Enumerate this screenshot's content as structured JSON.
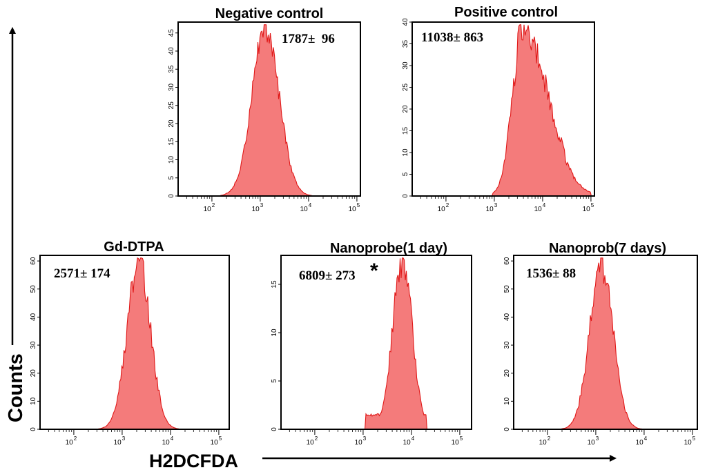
{
  "colors": {
    "fill": "#f47b7b",
    "outline": "#e01818",
    "axis": "#000000"
  },
  "axis_labels": {
    "y": "Counts",
    "x": "H2DCFDA"
  },
  "chart_data": [
    {
      "type": "histogram",
      "title": "Negative control",
      "annotation": "1787±  96",
      "x_scale": "log",
      "xlim": [
        20,
        200000
      ],
      "x_tick_labels": [
        {
          "exp": "2",
          "label": "10^2"
        },
        {
          "exp": "3",
          "label": "10^3"
        },
        {
          "exp": "4",
          "label": "10^4"
        },
        {
          "exp": "5",
          "label": "10^5"
        }
      ],
      "ylim": [
        0,
        48
      ],
      "y_ticks": [
        0,
        5,
        10,
        15,
        20,
        25,
        30,
        35,
        40,
        45
      ],
      "distribution": {
        "peak_value": 1300,
        "spread_decades": 0.28,
        "peak_count": 46,
        "lower_cut": 150,
        "upper_cut": 12000
      }
    },
    {
      "type": "histogram",
      "title": "Positive control",
      "annotation": "11038± 863",
      "x_scale": "log",
      "xlim": [
        20,
        200000
      ],
      "x_tick_labels": [
        {
          "exp": "2",
          "label": "10^2"
        },
        {
          "exp": "3",
          "label": "10^3"
        },
        {
          "exp": "4",
          "label": "10^4"
        },
        {
          "exp": "5",
          "label": "10^5"
        }
      ],
      "ylim": [
        0,
        40
      ],
      "y_ticks": [
        0,
        5,
        10,
        15,
        20,
        25,
        30,
        35,
        40
      ],
      "distribution": {
        "peak_value": 4000,
        "spread_decades": 0.22,
        "peak_count": 39,
        "right_spread_decades": 0.5,
        "secondary_peak_value": 25000,
        "secondary_peak_count": 13,
        "lower_cut": 900,
        "upper_cut": 100000
      }
    },
    {
      "type": "histogram",
      "title": "Gd-DTPA",
      "annotation": "2571± 174",
      "x_scale": "log",
      "xlim": [
        20,
        200000
      ],
      "x_tick_labels": [
        {
          "exp": "2",
          "label": "10^2"
        },
        {
          "exp": "3",
          "label": "10^3"
        },
        {
          "exp": "4",
          "label": "10^4"
        },
        {
          "exp": "5",
          "label": "10^5"
        }
      ],
      "ylim": [
        0,
        62
      ],
      "y_ticks": [
        0,
        10,
        20,
        30,
        40,
        50,
        60
      ],
      "distribution": {
        "peak_value": 2200,
        "spread_decades": 0.24,
        "peak_count": 60,
        "lower_cut": 200,
        "upper_cut": 20000
      }
    },
    {
      "type": "histogram",
      "title": "Nanoprobe(1 day)",
      "annotation": "6809± 273",
      "annotation_mark": "*",
      "x_scale": "log",
      "xlim": [
        20,
        200000
      ],
      "x_tick_labels": [
        {
          "exp": "2",
          "label": "10^2"
        },
        {
          "exp": "3",
          "label": "10^3"
        },
        {
          "exp": "4",
          "label": "10^4"
        },
        {
          "exp": "5",
          "label": "10^5"
        }
      ],
      "ylim": [
        0,
        18
      ],
      "y_ticks": [
        0,
        5,
        10,
        15
      ],
      "distribution": {
        "peak_value": 6500,
        "spread_decades": 0.2,
        "peak_count": 17.5,
        "lower_cut": 1100,
        "upper_cut": 20000,
        "floor_count": 1.5
      }
    },
    {
      "type": "histogram",
      "title": "Nanoprob(7 days)",
      "annotation": "1536± 88",
      "x_scale": "log",
      "xlim": [
        20,
        200000
      ],
      "x_tick_labels": [
        {
          "exp": "2",
          "label": "10^2"
        },
        {
          "exp": "3",
          "label": "10^3"
        },
        {
          "exp": "4",
          "label": "10^4"
        },
        {
          "exp": "5",
          "label": "10^5"
        }
      ],
      "ylim": [
        0,
        62
      ],
      "y_ticks": [
        0,
        10,
        20,
        30,
        40,
        50,
        60
      ],
      "distribution": {
        "peak_value": 1300,
        "spread_decades": 0.24,
        "peak_count": 59,
        "lower_cut": 90,
        "upper_cut": 16000
      }
    }
  ]
}
